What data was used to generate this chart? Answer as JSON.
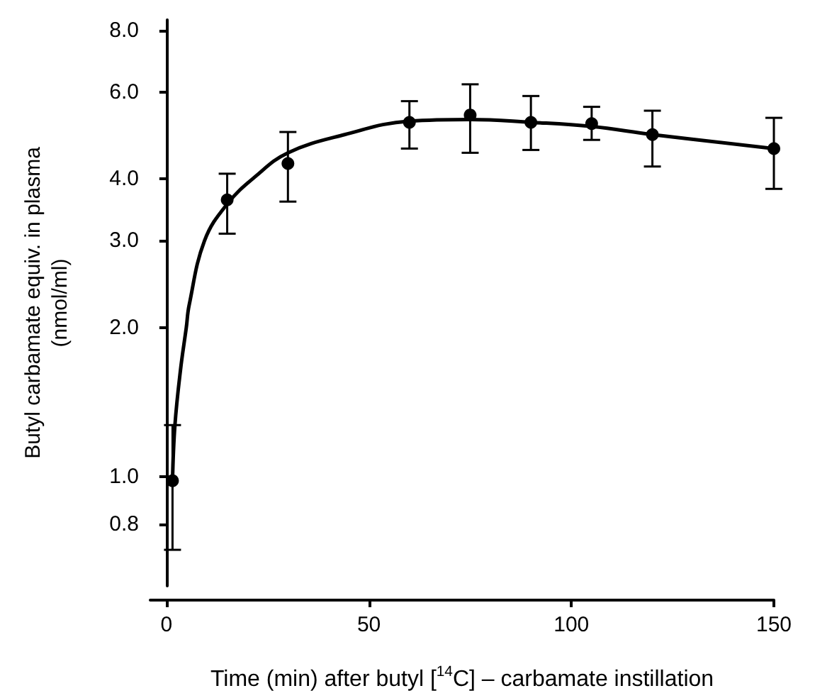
{
  "chart_data": {
    "type": "scatter",
    "xlabel": "Time (min) after butyl [$^{14}$C] – carbamate instillation",
    "ylabel": "Butyl carbamate equiv. in plasma\n(nmol/ml)",
    "log": "y",
    "xlim": [
      -4,
      150
    ],
    "xticks": [
      0,
      50,
      100,
      150
    ],
    "ylim": [
      0.6,
      8.4
    ],
    "yticks": [
      {
        "value": 0.8,
        "label": "0.8"
      },
      {
        "value": 1,
        "label": "1.0"
      },
      {
        "value": 2,
        "label": "2.0"
      },
      {
        "value": 3,
        "label": "3.0"
      },
      {
        "value": 4,
        "label": "4.0"
      },
      {
        "value": 6,
        "label": "6.0"
      },
      {
        "value": 8,
        "label": "8.0"
      }
    ],
    "series": [
      {
        "color": "#000000",
        "marker": "circle",
        "x": [
          1.5,
          15,
          30,
          60,
          75,
          90,
          105,
          120,
          150
        ],
        "values": [
          0.98,
          3.63,
          4.3,
          5.21,
          5.39,
          5.21,
          5.18,
          4.92,
          4.61
        ],
        "errors": [
          [
            0.71,
            1.27
          ],
          [
            3.1,
            4.1
          ],
          [
            3.6,
            4.98
          ],
          [
            4.61,
            5.75
          ],
          [
            4.52,
            6.22
          ],
          [
            4.58,
            5.89
          ],
          [
            4.8,
            5.6
          ],
          [
            4.24,
            5.5
          ],
          [
            3.82,
            5.32
          ]
        ]
      },
      {
        "type": "line",
        "color": "#000000",
        "marker": "none",
        "line_style": "solid",
        "x": [
          1.5,
          2.1,
          3.5,
          4.9,
          5.6,
          9.4,
          15,
          22,
          30,
          44,
          60,
          75,
          90,
          105,
          120,
          150
        ],
        "values": [
          0.98,
          1.27,
          1.65,
          2.0,
          2.22,
          3.0,
          3.56,
          4.05,
          4.52,
          4.92,
          5.24,
          5.28,
          5.21,
          5.11,
          4.92,
          4.61
        ]
      }
    ]
  }
}
